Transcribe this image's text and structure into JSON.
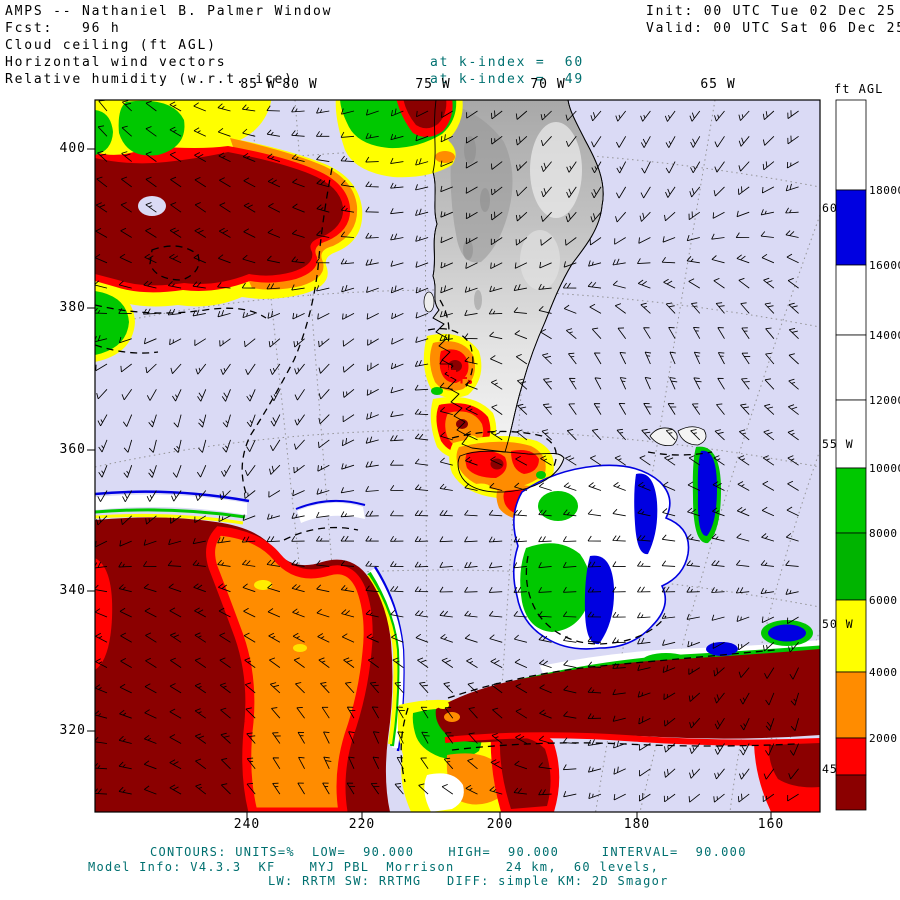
{
  "header": {
    "title": "AMPS -- Nathaniel B. Palmer Window",
    "init": "Init: 00 UTC Tue 02 Dec 25",
    "fcst": "Fcst:   96 h",
    "valid": "Valid: 00 UTC Sat 06 Dec 25",
    "field_ceiling": "Cloud ceiling (ft AGL)",
    "field_wind": "Horizontal wind vectors",
    "field_rh": "Relative humidity (w.r.t. ice)",
    "kindex_wind": "at k-index =  60",
    "kindex_rh": "at k-index =  49"
  },
  "axes": {
    "left": [
      "400",
      "380",
      "360",
      "340",
      "320"
    ],
    "bottom": [
      "240",
      "220",
      "200",
      "180",
      "160"
    ],
    "top": [
      "85 W",
      "80 W",
      "75 W",
      "70 W",
      "65 W"
    ],
    "right": [
      "60",
      "55 W",
      "50 W",
      "45"
    ]
  },
  "colorbar": {
    "title": "ft AGL",
    "labels": [
      "18000",
      "16000",
      "14000",
      "12000",
      "10000",
      "8000",
      "6000",
      "4000",
      "2000"
    ],
    "colors_top_to_bottom": [
      "#FFFFFF",
      "#0000E1",
      "#FFFFFF",
      "#FFFFFF",
      "#FFFFFF",
      "#00C800",
      "#00B400",
      "#FFFF00",
      "#FF8C00",
      "#FF0000",
      "#8B0000"
    ]
  },
  "footer": {
    "contours": "CONTOURS: UNITS=%  LOW=  90.000    HIGH=  90.000     INTERVAL=  90.000",
    "model1": "Model Info: V4.3.3  KF    MYJ PBL  Morrison      24 km,  60 levels,",
    "model2": "LW: RRTM SW: RRTMG   DIFF: simple KM: 2D Smagor"
  },
  "chart_data": {
    "type": "heatmap",
    "title": "AMPS -- Nathaniel B. Palmer Window",
    "variable": "Cloud ceiling (ft AGL)",
    "overlays": [
      "Horizontal wind vectors at k-index = 60",
      "Relative humidity (w.r.t. ice) contours at k-index = 49"
    ],
    "forecast_lead": "96 h",
    "init_time": "00 UTC Tue 02 Dec 25",
    "valid_time": "00 UTC Sat 06 Dec 25",
    "colorbar_units": "ft AGL",
    "colorbar_levels_ft": [
      2000,
      4000,
      6000,
      8000,
      10000,
      12000,
      14000,
      16000,
      18000
    ],
    "colorbar_colors_low_to_high": [
      "#8B0000",
      "#FF0000",
      "#FF8C00",
      "#FFFF00",
      "#00B400",
      "#00C800",
      "#FFFFFF",
      "#FFFFFF",
      "#FFFFFF",
      "#0000E1",
      "#FFFFFF"
    ],
    "clear_sky_color": "#DADAF5",
    "x_axis_gridpoint_ticks": [
      240,
      220,
      200,
      180,
      160
    ],
    "y_axis_gridpoint_ticks": [
      400,
      380,
      360,
      340,
      320
    ],
    "meridians_labeled": [
      "85 W",
      "80 W",
      "75 W",
      "70 W",
      "65 W",
      "60 W",
      "55 W",
      "50 W",
      "45 W"
    ],
    "rh_contour": {
      "units": "%",
      "low": 90.0,
      "high": 90.0,
      "interval": 90.0
    },
    "model_info": "V4.3.3, KF, MYJ PBL, Morrison, 24 km, 60 levels, LW: RRTM, SW: RRTMG, DIFF: simple, KM: 2D Smagor",
    "notable_features": [
      "Very low ceilings (< 2000 ft, dark red) northwest of Chile and in a broad east-west band across the far south of the domain",
      "Low-ceiling mass (2000-4000 ft, orange core) over the SE Pacific southwest of Patagonia",
      "Clear air (lavender background) over most of the Atlantic east of Argentina",
      "Mid/high ceilings (white with green and blue patches) in a feature east of Tierra del Fuego near the Falkland Islands",
      "Gray terrain-shaded area over the Andes and Argentina",
      "Red position markers near the Patagonian channels"
    ]
  }
}
